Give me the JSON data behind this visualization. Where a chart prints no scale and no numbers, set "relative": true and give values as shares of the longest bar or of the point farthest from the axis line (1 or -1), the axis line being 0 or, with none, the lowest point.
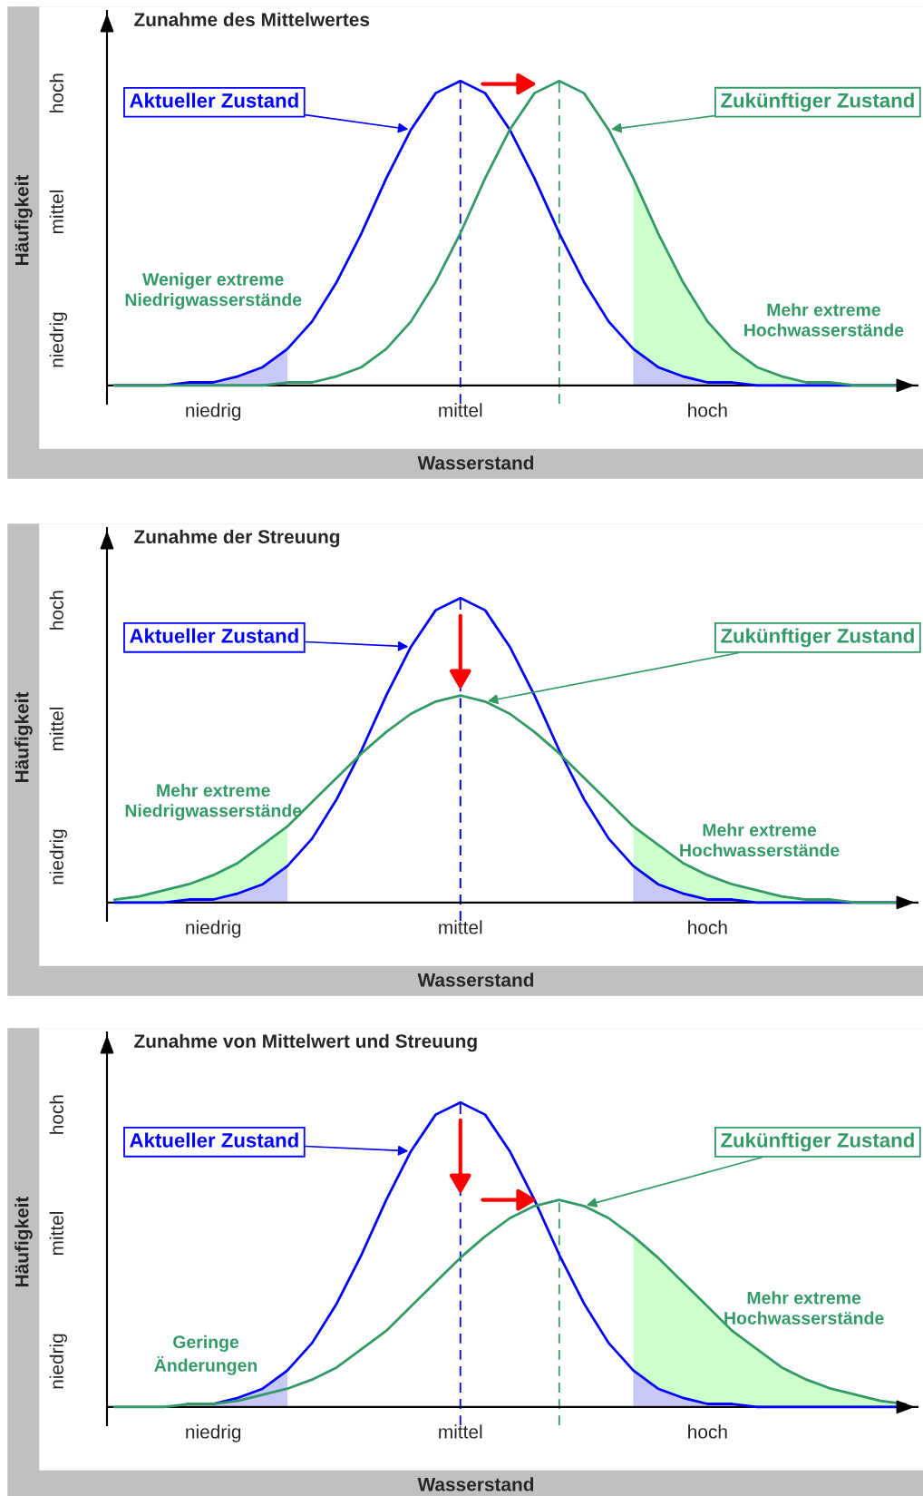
{
  "chart_data": [
    {
      "type": "line",
      "relative": true,
      "title": "Zunahme des Mittelwertes",
      "xlabel": "Wasserstand",
      "ylabel": "Häufigkeit",
      "categories": [
        null,
        null,
        null,
        null,
        "niedrig",
        null,
        null,
        null,
        null,
        null,
        null,
        null,
        null,
        null,
        "mittel",
        null,
        null,
        null,
        null,
        null,
        null,
        null,
        null,
        null,
        "hoch",
        null,
        null,
        null,
        null,
        null,
        null,
        null,
        null
      ],
      "series": [
        {
          "type": "area",
          "color": "#ccffcc",
          "values": [
            null,
            null,
            null,
            null,
            null,
            null,
            null,
            null,
            null,
            null,
            null,
            null,
            null,
            null,
            null,
            null,
            null,
            null,
            null,
            null,
            null,
            0.68,
            0.5,
            0.34,
            0.21,
            0.12,
            0.06,
            0.03,
            0.01,
            0.01,
            0,
            0,
            0
          ]
        },
        {
          "type": "area",
          "color": "#c8c8f8",
          "values": [
            0,
            0,
            0,
            0.01,
            0.01,
            0.03,
            0.06,
            0.12,
            null,
            null,
            null,
            null,
            null,
            null,
            null,
            null,
            null,
            null,
            null,
            null,
            null,
            0.12,
            0.06,
            0.03,
            0.01,
            0.01,
            0,
            0,
            0,
            0,
            0,
            0,
            0
          ]
        },
        {
          "name": "Aktueller Zustand",
          "color": "#0000ff",
          "values": [
            0,
            0,
            0,
            0.01,
            0.01,
            0.03,
            0.06,
            0.12,
            0.21,
            0.34,
            0.5,
            0.68,
            0.84,
            0.96,
            1,
            0.96,
            0.84,
            0.68,
            0.5,
            0.34,
            0.21,
            0.12,
            0.06,
            0.03,
            0.01,
            0.01,
            0,
            0,
            0,
            0,
            0,
            0,
            0
          ]
        },
        {
          "name": "Zukünftiger Zustand",
          "color": "#339966",
          "values": [
            0,
            0,
            0,
            0,
            0,
            0,
            0,
            0.01,
            0.01,
            0.03,
            0.06,
            0.12,
            0.21,
            0.34,
            0.5,
            0.68,
            0.84,
            0.96,
            1,
            0.96,
            0.84,
            0.68,
            0.5,
            0.34,
            0.21,
            0.12,
            0.06,
            0.03,
            0.01,
            0.01,
            0,
            0,
            0
          ]
        }
      ],
      "annotations": [
        "Weniger extreme\nNiedrigwasserstände",
        "Mehr extreme\nHochwasserstände",
        "niedrig",
        "mittel",
        "hoch"
      ]
    },
    {
      "type": "line",
      "relative": true,
      "title": "Zunahme der Streuung",
      "xlabel": "Wasserstand",
      "ylabel": "Häufigkeit",
      "categories": [
        null,
        null,
        null,
        null,
        "niedrig",
        null,
        null,
        null,
        null,
        null,
        null,
        null,
        null,
        null,
        "mittel",
        null,
        null,
        null,
        null,
        null,
        null,
        null,
        null,
        null,
        "hoch",
        null,
        null,
        null,
        null,
        null,
        null,
        null,
        null
      ],
      "series": [
        {
          "type": "area",
          "color": "#ccffcc",
          "values": [
            0.01,
            0.02,
            0.04,
            0.06,
            0.09,
            0.13,
            0.19,
            0.25,
            null,
            null,
            null,
            null,
            null,
            null,
            null,
            null,
            null,
            null,
            null,
            null,
            null,
            0.25,
            0.19,
            0.13,
            0.09,
            0.06,
            0.04,
            0.02,
            0.01,
            0.01,
            0,
            0,
            0
          ]
        },
        {
          "type": "area",
          "color": "#c8c8f8",
          "values": [
            0,
            0,
            0,
            0.01,
            0.01,
            0.03,
            0.06,
            0.12,
            null,
            null,
            null,
            null,
            null,
            null,
            null,
            null,
            null,
            null,
            null,
            null,
            null,
            0.12,
            0.06,
            0.03,
            0.01,
            0.01,
            0,
            0,
            0,
            0,
            0,
            0,
            0
          ]
        },
        {
          "name": "Aktueller Zustand",
          "color": "#0000ff",
          "values": [
            0,
            0,
            0,
            0.01,
            0.01,
            0.03,
            0.06,
            0.12,
            0.21,
            0.34,
            0.5,
            0.68,
            0.84,
            0.96,
            1,
            0.96,
            0.84,
            0.68,
            0.5,
            0.34,
            0.21,
            0.12,
            0.06,
            0.03,
            0.01,
            0.01,
            0,
            0,
            0,
            0,
            0,
            0,
            0
          ]
        },
        {
          "name": "Zukünftiger Zustand",
          "color": "#339966",
          "values": [
            0.01,
            0.02,
            0.04,
            0.06,
            0.09,
            0.13,
            0.19,
            0.25,
            0.33,
            0.41,
            0.49,
            0.56,
            0.62,
            0.66,
            0.68,
            0.66,
            0.62,
            0.56,
            0.49,
            0.41,
            0.33,
            0.25,
            0.19,
            0.13,
            0.09,
            0.06,
            0.04,
            0.02,
            0.01,
            0.01,
            0,
            0,
            0
          ]
        }
      ],
      "annotations": [
        "Mehr extreme\nNiedrigwasserstände",
        "Mehr extreme\nHochwasserstände",
        "niedrig",
        "mittel",
        "hoch"
      ]
    },
    {
      "type": "line",
      "relative": true,
      "title": "Zunahme von Mittelwert und Streuung",
      "xlabel": "Wasserstand",
      "ylabel": "Häufigkeit",
      "categories": [
        null,
        null,
        null,
        null,
        "niedrig",
        null,
        null,
        null,
        null,
        null,
        null,
        null,
        null,
        null,
        "mittel",
        null,
        null,
        null,
        null,
        null,
        null,
        null,
        null,
        null,
        "hoch",
        null,
        null,
        null,
        null,
        null,
        null,
        null,
        null
      ],
      "series": [
        {
          "type": "area",
          "color": "#ccffcc",
          "values": [
            null,
            null,
            null,
            null,
            null,
            null,
            null,
            null,
            null,
            null,
            null,
            null,
            null,
            null,
            null,
            null,
            null,
            null,
            null,
            null,
            null,
            0.56,
            0.49,
            0.41,
            0.33,
            0.25,
            0.19,
            0.13,
            0.09,
            0.06,
            0.04,
            0.02,
            0.01
          ]
        },
        {
          "type": "area",
          "color": "#c8c8f8",
          "values": [
            0,
            0,
            0,
            0.01,
            0.01,
            0.03,
            0.06,
            0.12,
            null,
            null,
            null,
            null,
            null,
            null,
            null,
            null,
            null,
            null,
            null,
            null,
            null,
            0.12,
            0.06,
            0.03,
            0.01,
            0.01,
            0,
            0,
            0,
            0,
            0,
            0,
            0
          ]
        },
        {
          "name": "Aktueller Zustand",
          "color": "#0000ff",
          "values": [
            null,
            null,
            null,
            0.01,
            0.01,
            0.03,
            0.06,
            0.12,
            0.21,
            0.34,
            0.5,
            0.68,
            0.84,
            0.96,
            1,
            0.96,
            0.84,
            0.68,
            0.5,
            0.34,
            0.21,
            0.12,
            0.06,
            0.03,
            0.01,
            0.01,
            0,
            0,
            0,
            0,
            0,
            0,
            0
          ]
        },
        {
          "name": "Zukünftiger Zustand",
          "color": "#339966",
          "values": [
            0,
            0,
            0,
            0.01,
            0.01,
            0.02,
            0.04,
            0.06,
            0.09,
            0.13,
            0.19,
            0.25,
            0.33,
            0.41,
            0.49,
            0.56,
            0.62,
            0.66,
            0.68,
            0.66,
            0.62,
            0.56,
            0.49,
            0.41,
            0.33,
            0.25,
            0.19,
            0.13,
            0.09,
            0.06,
            0.04,
            0.02,
            0.01
          ]
        }
      ],
      "annotations": [
        "Geringe\nÄnderungen",
        "Mehr extreme\nHochwasserstände",
        "niedrig",
        "mittel",
        "hoch"
      ]
    }
  ]
}
